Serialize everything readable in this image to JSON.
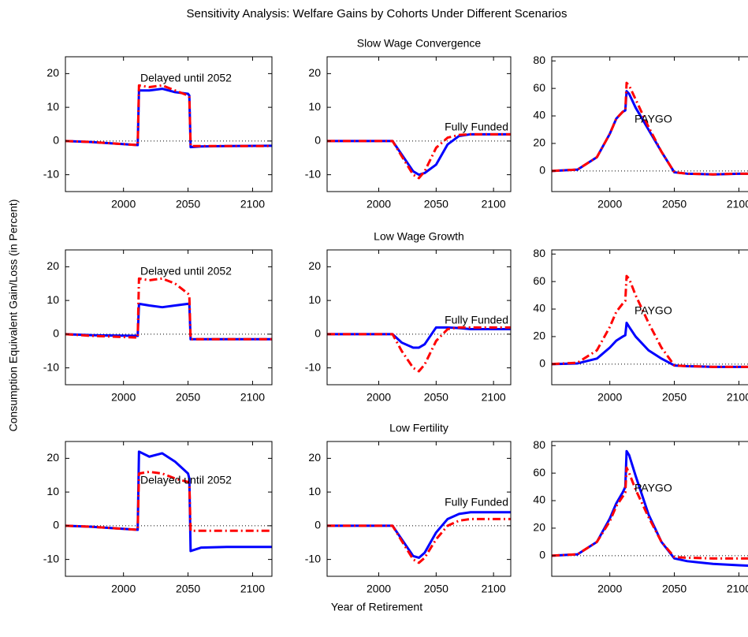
{
  "title": "Sensitivity Analysis: Welfare Gains by Cohorts Under Different Scenarios",
  "xlabel": "Year of Retirement",
  "ylabel": "Consumption Equivalent Gain/Loss (in Percent)",
  "chart_data": [
    {
      "type": "line",
      "annotation": "Delayed until 2052",
      "xlim": [
        1955,
        2115
      ],
      "xticks": [
        2000,
        2050,
        2100
      ],
      "ylim": [
        -15,
        25
      ],
      "yticks": [
        -10,
        0,
        10,
        20
      ],
      "x": [
        1955,
        1975,
        2011,
        2012,
        2020,
        2030,
        2040,
        2050,
        2051,
        2052,
        2060,
        2080,
        2115
      ],
      "series": [
        {
          "color": "#0000ff",
          "linestyle": "solid",
          "values": [
            0,
            -0.3,
            -1.2,
            15,
            15,
            15.5,
            14.5,
            14,
            13.5,
            -1.8,
            -1.6,
            -1.5,
            -1.4
          ]
        },
        {
          "color": "#ff0000",
          "linestyle": "dashdot",
          "values": [
            0,
            -0.3,
            -1.2,
            16.5,
            16,
            16.5,
            15,
            13.5,
            13,
            -1.5,
            -1.5,
            -1.5,
            -1.5
          ]
        }
      ]
    },
    {
      "type": "line",
      "title": "Slow Wage Convergence",
      "annotation": "Fully Funded",
      "xlim": [
        1955,
        2115
      ],
      "xticks": [
        2000,
        2050,
        2100
      ],
      "ylim": [
        -15,
        25
      ],
      "yticks": [
        -10,
        0,
        10,
        20
      ],
      "x": [
        1955,
        1990,
        2012,
        2020,
        2030,
        2035,
        2040,
        2050,
        2060,
        2070,
        2080,
        2100,
        2115
      ],
      "series": [
        {
          "color": "#0000ff",
          "linestyle": "solid",
          "values": [
            0,
            0,
            0,
            -4,
            -9,
            -10,
            -9.5,
            -7,
            -1,
            1.5,
            2,
            2,
            2
          ]
        },
        {
          "color": "#ff0000",
          "linestyle": "dashdot",
          "values": [
            0,
            0,
            0,
            -4.5,
            -10,
            -11,
            -9,
            -2,
            1,
            1.8,
            2,
            2,
            2
          ]
        }
      ]
    },
    {
      "type": "line",
      "annotation": "PAYGO",
      "xlim": [
        1955,
        2115
      ],
      "xticks": [
        2000,
        2050,
        2100
      ],
      "ylim": [
        -15,
        83
      ],
      "yticks": [
        0,
        20,
        40,
        60,
        80
      ],
      "x": [
        1955,
        1975,
        1990,
        2000,
        2005,
        2010,
        2012,
        2013,
        2015,
        2020,
        2030,
        2040,
        2050,
        2060,
        2080,
        2100,
        2115
      ],
      "series": [
        {
          "color": "#0000ff",
          "linestyle": "solid",
          "values": [
            0,
            1,
            10,
            27,
            38,
            43,
            44,
            58,
            56,
            46,
            30,
            14,
            -1,
            -2,
            -2.5,
            -2,
            -2
          ]
        },
        {
          "color": "#ff0000",
          "linestyle": "dashdot",
          "values": [
            0,
            1,
            10,
            27,
            38,
            43,
            44,
            64,
            62,
            52,
            32,
            14,
            -1,
            -2,
            -2.5,
            -2,
            -2
          ]
        }
      ]
    },
    {
      "type": "line",
      "annotation": "Delayed until 2052",
      "xlim": [
        1955,
        2115
      ],
      "xticks": [
        2000,
        2050,
        2100
      ],
      "ylim": [
        -15,
        25
      ],
      "yticks": [
        -10,
        0,
        10,
        20
      ],
      "x": [
        1955,
        1975,
        2011,
        2012,
        2020,
        2030,
        2040,
        2050,
        2051,
        2052,
        2060,
        2080,
        2115
      ],
      "series": [
        {
          "color": "#0000ff",
          "linestyle": "solid",
          "values": [
            0,
            -0.3,
            -0.5,
            9,
            8.5,
            8,
            8.5,
            9,
            9,
            -1.5,
            -1.5,
            -1.5,
            -1.5
          ]
        },
        {
          "color": "#ff0000",
          "linestyle": "dashdot",
          "values": [
            0,
            -0.5,
            -1,
            16.5,
            16,
            16.5,
            15,
            12,
            11.5,
            -1.5,
            -1.5,
            -1.5,
            -1.5
          ]
        }
      ]
    },
    {
      "type": "line",
      "title": "Low Wage Growth",
      "annotation": "Fully Funded",
      "xlim": [
        1955,
        2115
      ],
      "xticks": [
        2000,
        2050,
        2100
      ],
      "ylim": [
        -15,
        25
      ],
      "yticks": [
        -10,
        0,
        10,
        20
      ],
      "x": [
        1955,
        1990,
        2012,
        2020,
        2030,
        2035,
        2040,
        2050,
        2060,
        2070,
        2080,
        2100,
        2115
      ],
      "series": [
        {
          "color": "#0000ff",
          "linestyle": "solid",
          "values": [
            0,
            0,
            0,
            -2.5,
            -4,
            -4,
            -3,
            2,
            2,
            1.8,
            1.5,
            1.5,
            1.5
          ]
        },
        {
          "color": "#ff0000",
          "linestyle": "dashdot",
          "values": [
            0,
            0,
            0,
            -5,
            -10,
            -11,
            -9,
            -2,
            1.5,
            2,
            2,
            2,
            2
          ]
        }
      ]
    },
    {
      "type": "line",
      "annotation": "PAYGO",
      "xlim": [
        1955,
        2115
      ],
      "xticks": [
        2000,
        2050,
        2100
      ],
      "ylim": [
        -15,
        83
      ],
      "yticks": [
        0,
        20,
        40,
        60,
        80
      ],
      "x": [
        1955,
        1975,
        1990,
        2000,
        2005,
        2010,
        2012,
        2013,
        2015,
        2020,
        2030,
        2040,
        2050,
        2060,
        2080,
        2100,
        2115
      ],
      "series": [
        {
          "color": "#0000ff",
          "linestyle": "solid",
          "values": [
            0,
            0.5,
            4,
            12,
            17,
            20,
            21,
            30,
            27,
            20,
            10,
            4,
            -1,
            -1.5,
            -2,
            -2,
            -2
          ]
        },
        {
          "color": "#ff0000",
          "linestyle": "dashdot",
          "values": [
            0,
            1,
            10,
            27,
            38,
            44,
            46,
            64,
            62,
            50,
            30,
            12,
            -1,
            -1.5,
            -2,
            -2,
            -2
          ]
        }
      ]
    },
    {
      "type": "line",
      "annotation": "Delayed until 2052",
      "xlim": [
        1955,
        2115
      ],
      "xticks": [
        2000,
        2050,
        2100
      ],
      "ylim": [
        -15,
        25
      ],
      "yticks": [
        -10,
        0,
        10,
        20
      ],
      "x": [
        1955,
        1975,
        2011,
        2012,
        2020,
        2030,
        2040,
        2050,
        2051,
        2052,
        2060,
        2080,
        2115
      ],
      "series": [
        {
          "color": "#0000ff",
          "linestyle": "solid",
          "values": [
            0,
            -0.3,
            -1.2,
            22,
            20.5,
            21.5,
            19,
            15.5,
            14,
            -7.5,
            -6.5,
            -6.3,
            -6.3
          ]
        },
        {
          "color": "#ff0000",
          "linestyle": "dashdot",
          "values": [
            0,
            -0.3,
            -1.2,
            15.5,
            16,
            15.5,
            14,
            13,
            12.5,
            -1.5,
            -1.5,
            -1.5,
            -1.5
          ]
        }
      ]
    },
    {
      "type": "line",
      "title": "Low Fertility",
      "annotation": "Fully Funded",
      "xlim": [
        1955,
        2115
      ],
      "xticks": [
        2000,
        2050,
        2100
      ],
      "ylim": [
        -15,
        25
      ],
      "yticks": [
        -10,
        0,
        10,
        20
      ],
      "x": [
        1955,
        1990,
        2012,
        2020,
        2030,
        2035,
        2040,
        2050,
        2060,
        2070,
        2080,
        2100,
        2115
      ],
      "series": [
        {
          "color": "#0000ff",
          "linestyle": "solid",
          "values": [
            0,
            0,
            0,
            -4,
            -9,
            -9.5,
            -8,
            -2,
            2,
            3.5,
            4,
            4,
            4
          ]
        },
        {
          "color": "#ff0000",
          "linestyle": "dashdot",
          "values": [
            0,
            0,
            0,
            -4.5,
            -10,
            -11,
            -9.5,
            -4,
            0,
            1.5,
            2,
            2,
            2
          ]
        }
      ]
    },
    {
      "type": "line",
      "annotation": "PAYGO",
      "xlim": [
        1955,
        2115
      ],
      "xticks": [
        2000,
        2050,
        2100
      ],
      "ylim": [
        -15,
        83
      ],
      "yticks": [
        0,
        20,
        40,
        60,
        80
      ],
      "x": [
        1955,
        1975,
        1990,
        2000,
        2005,
        2010,
        2012,
        2013,
        2015,
        2020,
        2030,
        2040,
        2050,
        2060,
        2080,
        2100,
        2115
      ],
      "series": [
        {
          "color": "#0000ff",
          "linestyle": "solid",
          "values": [
            0,
            1,
            10,
            27,
            38,
            46,
            50,
            76,
            73,
            58,
            30,
            10,
            -2,
            -4,
            -6,
            -7,
            -7.5
          ]
        },
        {
          "color": "#ff0000",
          "linestyle": "dashdot",
          "values": [
            0,
            1,
            10,
            25,
            36,
            43,
            46,
            64,
            60,
            48,
            28,
            10,
            -1,
            -1.5,
            -2,
            -2,
            -2
          ]
        }
      ]
    }
  ]
}
